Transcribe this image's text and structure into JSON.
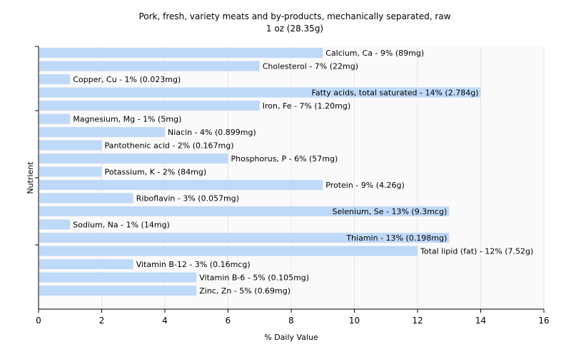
{
  "colors": {
    "bar": "#bfd9f9",
    "grid": "#e6e6e6",
    "plot_background": "#fafafa",
    "axis": "#000000"
  },
  "chart_data": {
    "type": "bar",
    "orientation": "horizontal",
    "title": "Pork, fresh, variety meats and by-products, mechanically separated, raw",
    "subtitle": "1 oz (28.35g)",
    "xlabel": "% Daily Value",
    "ylabel": "Nutrient",
    "xlim": [
      0,
      16
    ],
    "xticks": [
      0,
      2,
      4,
      6,
      8,
      10,
      12,
      14,
      16
    ],
    "grid": true,
    "categories": [
      "Calcium, Ca",
      "Cholesterol",
      "Copper, Cu",
      "Fatty acids, total saturated",
      "Iron, Fe",
      "Magnesium, Mg",
      "Niacin",
      "Pantothenic acid",
      "Phosphorus, P",
      "Potassium, K",
      "Protein",
      "Riboflavin",
      "Selenium, Se",
      "Sodium, Na",
      "Thiamin",
      "Total lipid (fat)",
      "Vitamin B-12",
      "Vitamin B-6",
      "Zinc, Zn"
    ],
    "values": [
      9,
      7,
      1,
      14,
      7,
      1,
      4,
      2,
      6,
      2,
      9,
      3,
      13,
      1,
      13,
      12,
      3,
      5,
      5
    ],
    "labels": [
      "Calcium, Ca - 9% (89mg)",
      "Cholesterol - 7% (22mg)",
      "Copper, Cu - 1% (0.023mg)",
      "Fatty acids, total saturated - 14% (2.784g)",
      "Iron, Fe - 7% (1.20mg)",
      "Magnesium, Mg - 1% (5mg)",
      "Niacin - 4% (0.899mg)",
      "Pantothenic acid - 2% (0.167mg)",
      "Phosphorus, P - 6% (57mg)",
      "Potassium, K - 2% (84mg)",
      "Protein - 9% (4.26g)",
      "Riboflavin - 3% (0.057mg)",
      "Selenium, Se - 13% (9.3mcg)",
      "Sodium, Na - 1% (14mg)",
      "Thiamin - 13% (0.198mg)",
      "Total lipid (fat) - 12% (7.52g)",
      "Vitamin B-12 - 3% (0.16mcg)",
      "Vitamin B-6 - 5% (0.105mg)",
      "Zinc, Zn - 5% (0.69mg)"
    ]
  }
}
